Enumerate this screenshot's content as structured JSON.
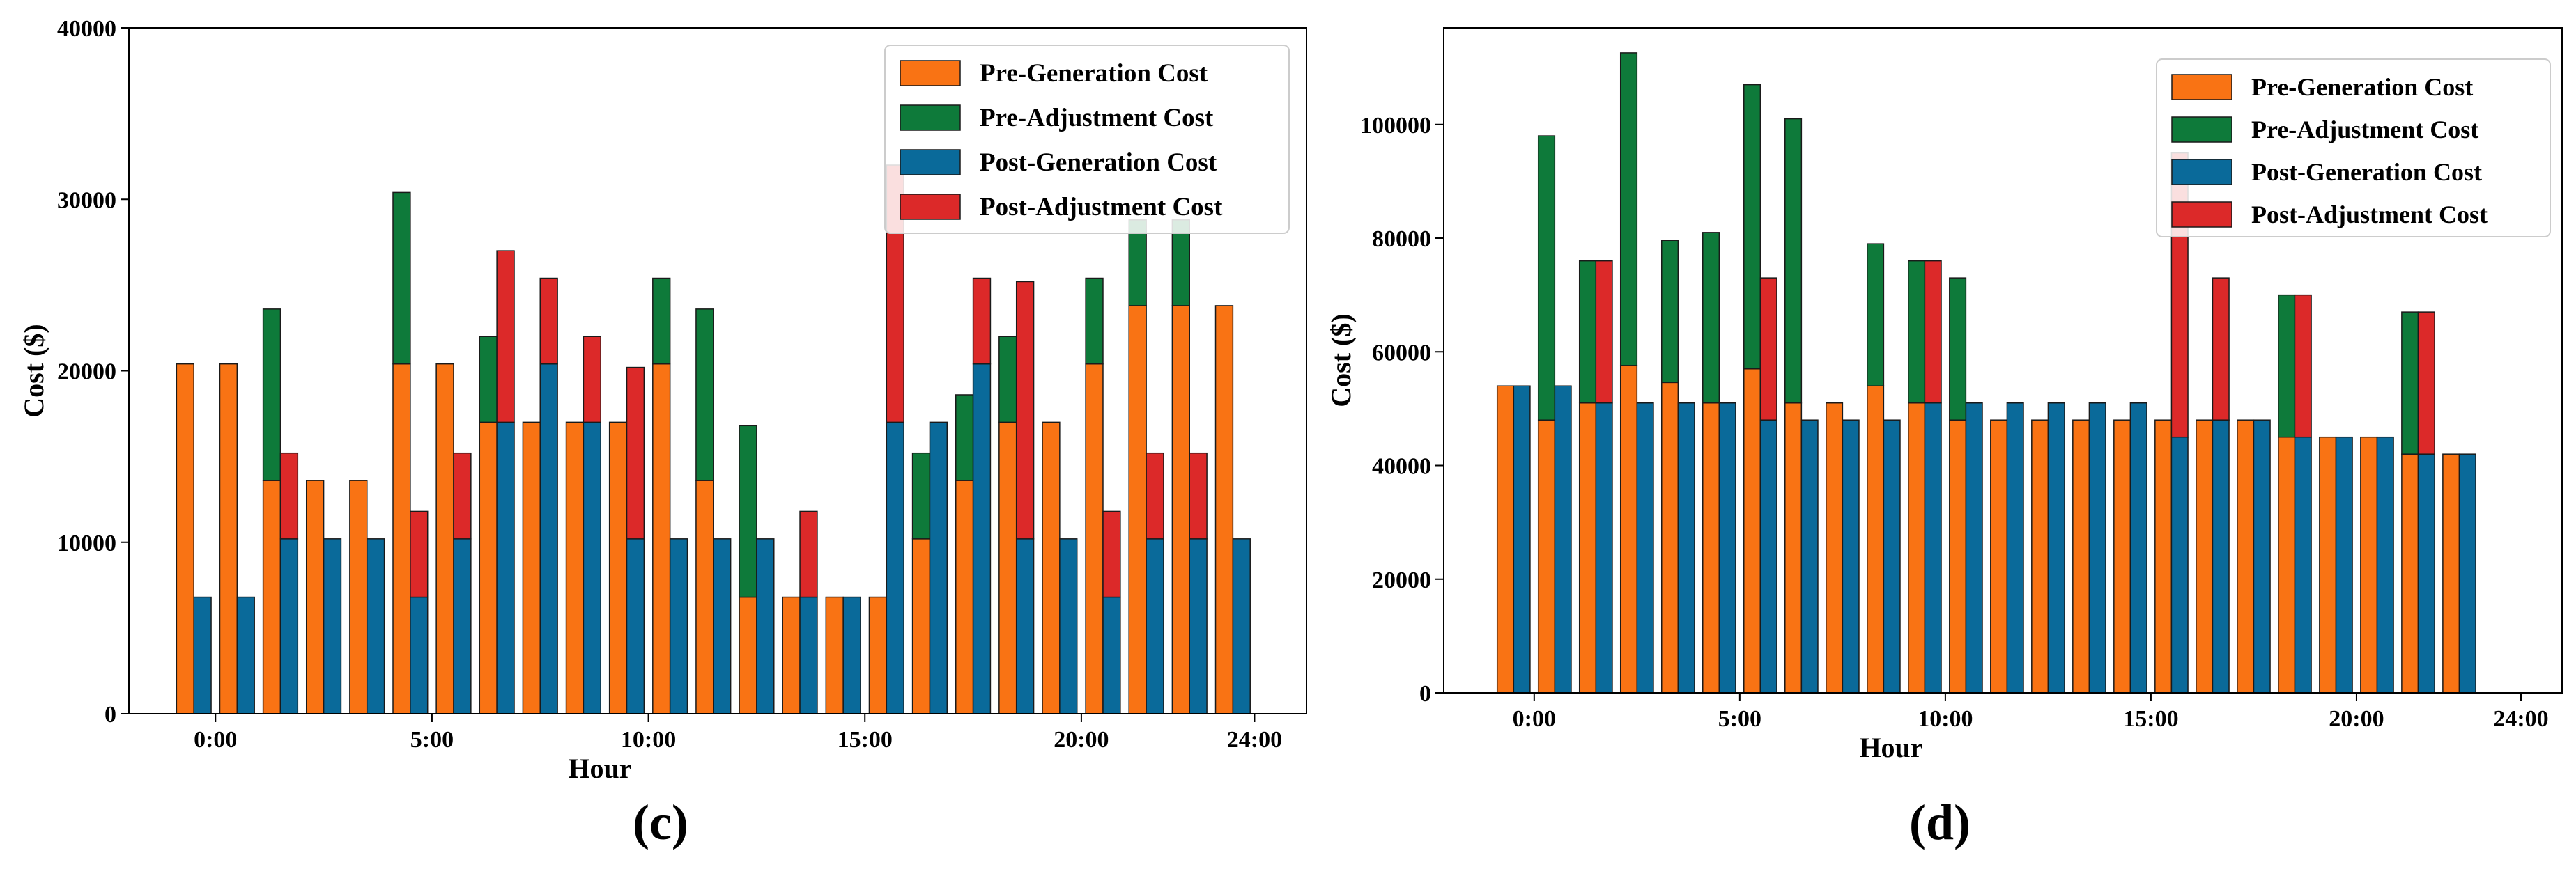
{
  "colors": {
    "pre_generation": "#f97314",
    "pre_adjustment": "#0e7a3a",
    "post_generation": "#0a6a9a",
    "post_adjustment": "#dc2929",
    "edge": "#1a1a1a"
  },
  "chart_data": [
    {
      "type": "bar",
      "panel_label": "(c)",
      "stacked_grouped": true,
      "title": "",
      "xlabel": "Hour",
      "ylabel": "Cost ($)",
      "ylim": [
        0,
        40000
      ],
      "yticks": [
        0,
        10000,
        20000,
        30000,
        40000
      ],
      "xlim": [
        -1.5,
        25.7
      ],
      "xticks": [
        {
          "pos": 0.5,
          "label": "0:00"
        },
        {
          "pos": 5.5,
          "label": "5:00"
        },
        {
          "pos": 10.5,
          "label": "10:00"
        },
        {
          "pos": 15.5,
          "label": "15:00"
        },
        {
          "pos": 20.5,
          "label": "20:00"
        },
        {
          "pos": 24.5,
          "label": "24:00"
        }
      ],
      "legend_position": "top-right",
      "legend": [
        "Pre-Generation Cost",
        "Pre-Adjustment Cost",
        "Post-Generation Cost",
        "Post-Adjustment Cost"
      ],
      "hours": [
        0,
        1,
        2,
        3,
        4,
        5,
        6,
        7,
        8,
        9,
        10,
        11,
        12,
        13,
        14,
        15,
        16,
        17,
        18,
        19,
        20,
        21,
        22,
        23,
        24
      ],
      "series": [
        {
          "name": "Pre-Generation Cost",
          "values": [
            20400,
            20400,
            13600,
            13600,
            13600,
            20400,
            20400,
            17000,
            17000,
            17000,
            17000,
            20400,
            13600,
            6800,
            6800,
            6800,
            6800,
            10200,
            13600,
            17000,
            17000,
            20400,
            23800,
            23800,
            23800
          ]
        },
        {
          "name": "Pre-Adjustment Cost",
          "values": [
            0,
            0,
            10000,
            0,
            0,
            10000,
            0,
            5000,
            0,
            0,
            0,
            5000,
            10000,
            10000,
            0,
            0,
            0,
            5000,
            5000,
            5000,
            0,
            5000,
            5000,
            5000,
            0
          ]
        },
        {
          "name": "Post-Generation Cost",
          "values": [
            6800,
            6800,
            10200,
            10200,
            10200,
            6800,
            10200,
            17000,
            20400,
            17000,
            10200,
            10200,
            10200,
            10200,
            6800,
            6800,
            17000,
            17000,
            20400,
            10200,
            10200,
            6800,
            10200,
            10200,
            10200
          ]
        },
        {
          "name": "Post-Adjustment Cost",
          "values": [
            0,
            0,
            5000,
            0,
            0,
            5000,
            5000,
            10000,
            5000,
            5000,
            10000,
            0,
            0,
            0,
            5000,
            0,
            15000,
            0,
            5000,
            15000,
            0,
            5000,
            5000,
            5000,
            0
          ]
        }
      ]
    },
    {
      "type": "bar",
      "panel_label": "(d)",
      "stacked_grouped": true,
      "title": "",
      "xlabel": "Hour",
      "ylabel": "Cost ($)",
      "ylim": [
        0,
        117000
      ],
      "yticks": [
        0,
        20000,
        40000,
        60000,
        80000,
        100000
      ],
      "xlim": [
        -1.7,
        25.5
      ],
      "xticks": [
        {
          "pos": 0.5,
          "label": "0:00"
        },
        {
          "pos": 5.5,
          "label": "5:00"
        },
        {
          "pos": 10.5,
          "label": "10:00"
        },
        {
          "pos": 15.5,
          "label": "15:00"
        },
        {
          "pos": 20.5,
          "label": "20:00"
        },
        {
          "pos": 24.5,
          "label": "24:00"
        }
      ],
      "legend_position": "top-right",
      "legend": [
        "Pre-Generation Cost",
        "Pre-Adjustment Cost",
        "Post-Generation Cost",
        "Post-Adjustment Cost"
      ],
      "hours": [
        0,
        1,
        2,
        3,
        4,
        5,
        6,
        7,
        8,
        9,
        10,
        11,
        12,
        13,
        14,
        15,
        16,
        17,
        18,
        19,
        20,
        21,
        22,
        23,
        24
      ],
      "series": [
        {
          "name": "Pre-Generation Cost",
          "values": [
            54000,
            48000,
            51000,
            57600,
            54600,
            51000,
            57000,
            51000,
            51000,
            54000,
            51000,
            48000,
            48000,
            48000,
            48000,
            48000,
            48000,
            48000,
            48000,
            45000,
            45000,
            45000,
            42000,
            42000,
            0
          ]
        },
        {
          "name": "Pre-Adjustment Cost",
          "values": [
            0,
            50000,
            25000,
            55000,
            25000,
            30000,
            50000,
            50000,
            0,
            25000,
            25000,
            25000,
            0,
            0,
            0,
            0,
            0,
            0,
            0,
            25000,
            0,
            0,
            25000,
            0,
            0
          ]
        },
        {
          "name": "Post-Generation Cost",
          "values": [
            54000,
            54000,
            51000,
            51000,
            51000,
            51000,
            48000,
            48000,
            48000,
            48000,
            51000,
            51000,
            51000,
            51000,
            51000,
            51000,
            45000,
            48000,
            48000,
            45000,
            45000,
            45000,
            42000,
            42000,
            0
          ]
        },
        {
          "name": "Post-Adjustment Cost",
          "values": [
            0,
            0,
            25000,
            0,
            0,
            0,
            25000,
            0,
            0,
            0,
            25000,
            0,
            0,
            0,
            0,
            0,
            50000,
            25000,
            0,
            25000,
            0,
            0,
            25000,
            0,
            0
          ]
        }
      ]
    }
  ]
}
